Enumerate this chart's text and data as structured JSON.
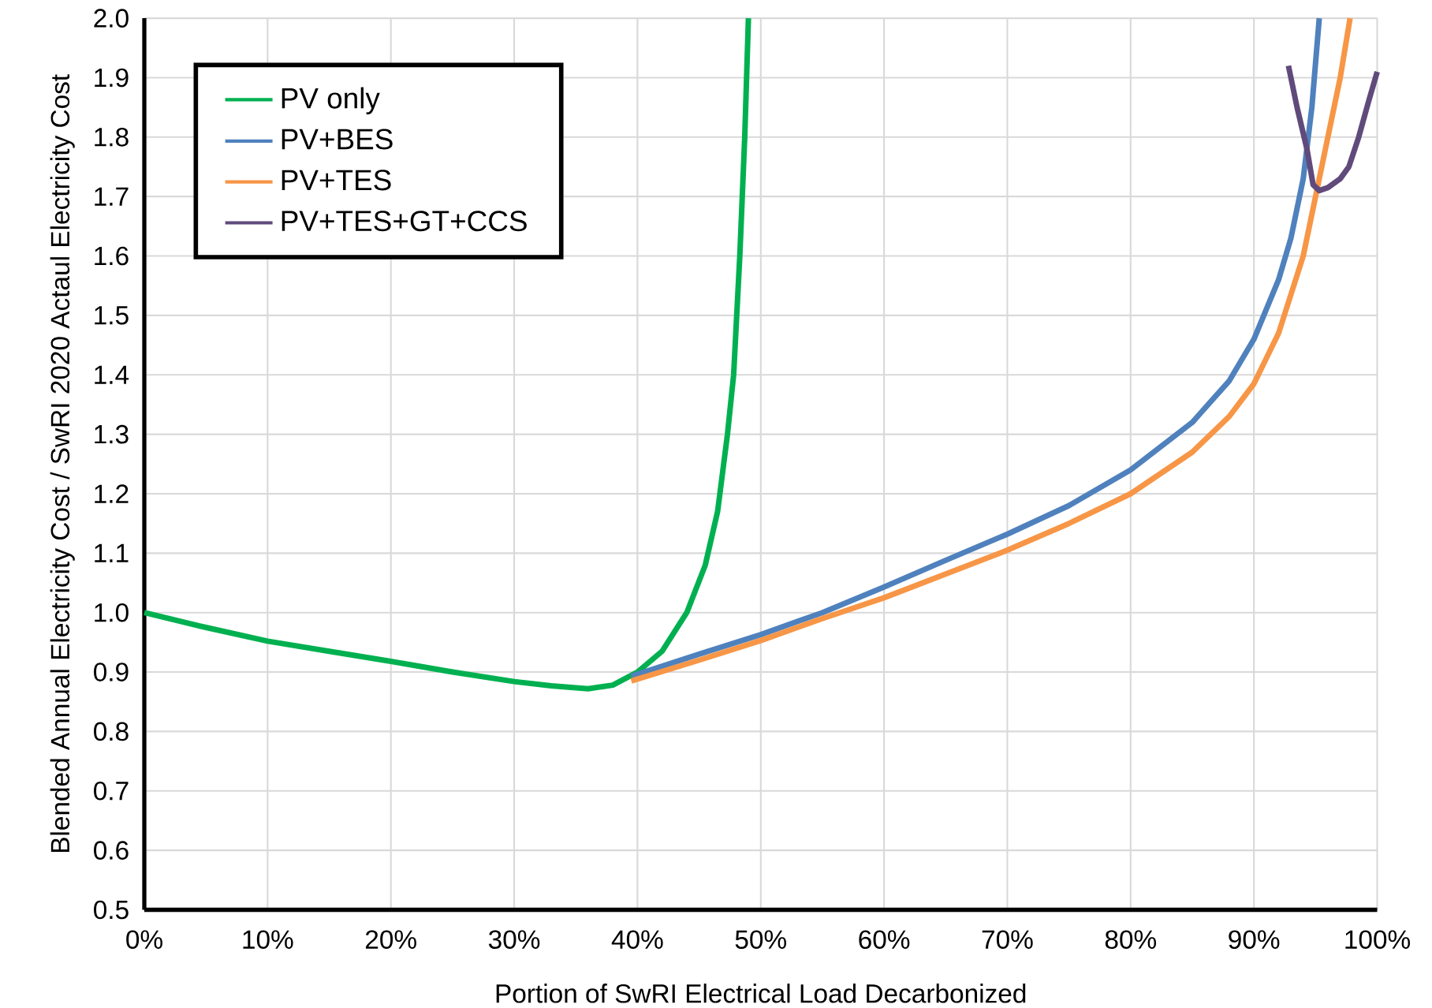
{
  "chart_data": {
    "type": "line",
    "xlabel": "Portion of SwRI Electrical Load Decarbonized",
    "ylabel": "Blended Annual Electricity Cost / SwRI 2020 Actaul Electricity Cost",
    "xlim": [
      0,
      100
    ],
    "ylim": [
      0.5,
      2.0
    ],
    "xticks": [
      {
        "value": 0,
        "label": "0%"
      },
      {
        "value": 10,
        "label": "10%"
      },
      {
        "value": 20,
        "label": "20%"
      },
      {
        "value": 30,
        "label": "30%"
      },
      {
        "value": 40,
        "label": "40%"
      },
      {
        "value": 50,
        "label": "50%"
      },
      {
        "value": 60,
        "label": "60%"
      },
      {
        "value": 70,
        "label": "70%"
      },
      {
        "value": 80,
        "label": "80%"
      },
      {
        "value": 90,
        "label": "90%"
      },
      {
        "value": 100,
        "label": "100%"
      }
    ],
    "yticks": [
      {
        "value": 0.5,
        "label": "0.5"
      },
      {
        "value": 0.6,
        "label": "0.6"
      },
      {
        "value": 0.7,
        "label": "0.7"
      },
      {
        "value": 0.8,
        "label": "0.8"
      },
      {
        "value": 0.9,
        "label": "0.9"
      },
      {
        "value": 1.0,
        "label": "1.0"
      },
      {
        "value": 1.1,
        "label": "1.1"
      },
      {
        "value": 1.2,
        "label": "1.2"
      },
      {
        "value": 1.3,
        "label": "1.3"
      },
      {
        "value": 1.4,
        "label": "1.4"
      },
      {
        "value": 1.5,
        "label": "1.5"
      },
      {
        "value": 1.6,
        "label": "1.6"
      },
      {
        "value": 1.7,
        "label": "1.7"
      },
      {
        "value": 1.8,
        "label": "1.8"
      },
      {
        "value": 1.9,
        "label": "1.9"
      },
      {
        "value": 2.0,
        "label": "2.0"
      }
    ],
    "grid": true,
    "legend": "top left",
    "marker": "none",
    "line_style": "solid",
    "series": [
      {
        "name": "PV only",
        "color": "#00b050",
        "x": [
          0,
          5,
          10,
          15,
          20,
          25,
          30,
          33,
          36,
          38,
          40,
          42,
          44,
          45.5,
          46.5,
          47.3,
          47.8,
          48.3,
          48.7,
          49.0
        ],
        "values": [
          1.0,
          0.975,
          0.952,
          0.935,
          0.918,
          0.9,
          0.884,
          0.877,
          0.872,
          0.878,
          0.9,
          0.935,
          1.0,
          1.08,
          1.17,
          1.3,
          1.4,
          1.6,
          1.8,
          2.0
        ]
      },
      {
        "name": "PV+BES",
        "color": "#4f81bd",
        "x": [
          39.5,
          45,
          50,
          55,
          60,
          65,
          70,
          75,
          80,
          85,
          88,
          90,
          92,
          93,
          94,
          94.7,
          95.3
        ],
        "values": [
          0.893,
          0.93,
          0.963,
          1.0,
          1.043,
          1.088,
          1.132,
          1.18,
          1.24,
          1.32,
          1.39,
          1.46,
          1.56,
          1.63,
          1.73,
          1.85,
          2.0
        ]
      },
      {
        "name": "PV+TES",
        "color": "#f79646",
        "x": [
          39.5,
          45,
          50,
          55,
          60,
          65,
          70,
          75,
          80,
          85,
          88,
          90,
          92,
          94,
          95,
          96,
          97,
          97.8
        ],
        "values": [
          0.885,
          0.92,
          0.953,
          0.99,
          1.025,
          1.065,
          1.105,
          1.15,
          1.2,
          1.27,
          1.33,
          1.385,
          1.47,
          1.6,
          1.7,
          1.8,
          1.9,
          2.0
        ]
      },
      {
        "name": "PV+TES+GT+CCS",
        "color": "#604a7b",
        "x": [
          92.8,
          93.5,
          94.3,
          94.8,
          95.3,
          96,
          97,
          97.7,
          98.5,
          99.3,
          100
        ],
        "values": [
          1.92,
          1.85,
          1.78,
          1.72,
          1.71,
          1.715,
          1.73,
          1.75,
          1.8,
          1.86,
          1.91
        ]
      }
    ]
  }
}
